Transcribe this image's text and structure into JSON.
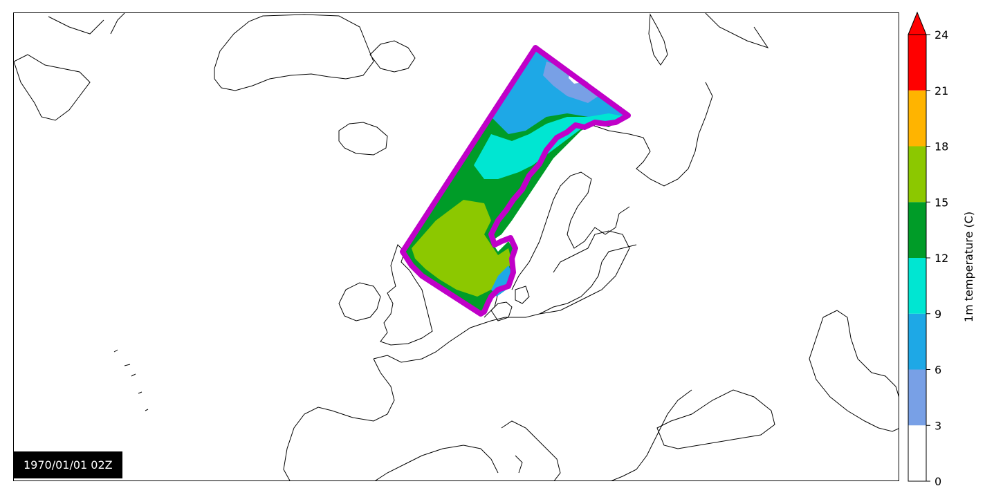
{
  "map": {
    "timestamp": "1970/01/01 02Z",
    "domain_outline_color": "#c000c8",
    "coastline_color": "#000000"
  },
  "colorbar": {
    "label": "1m temperature (C)",
    "extend": "max",
    "levels": [
      {
        "from": 0,
        "to": 3,
        "color": "#ffffff"
      },
      {
        "from": 3,
        "to": 6,
        "color": "#78a0e6"
      },
      {
        "from": 6,
        "to": 9,
        "color": "#1ea8e6"
      },
      {
        "from": 9,
        "to": 12,
        "color": "#00e6d2"
      },
      {
        "from": 12,
        "to": 15,
        "color": "#009c28"
      },
      {
        "from": 15,
        "to": 18,
        "color": "#8cc800"
      },
      {
        "from": 18,
        "to": 21,
        "color": "#ffb400"
      },
      {
        "from": 21,
        "to": 24,
        "color": "#ff0000"
      }
    ],
    "ticks": [
      "0",
      "3",
      "6",
      "9",
      "12",
      "15",
      "18",
      "21",
      "24"
    ]
  }
}
